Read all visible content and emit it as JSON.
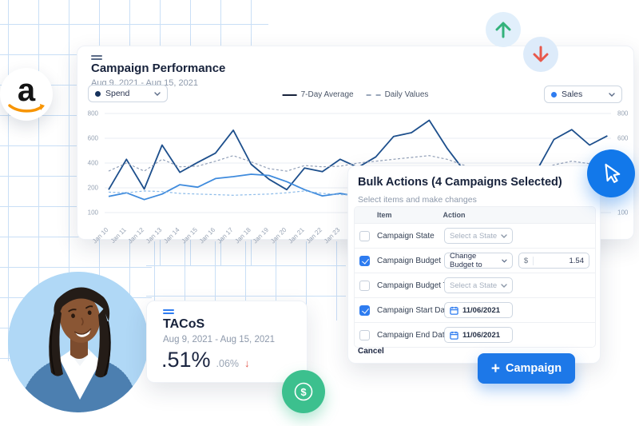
{
  "chart_card": {
    "title": "Campaign Performance",
    "date_range": "Aug 9, 2021 - Aug 15, 2021",
    "left_select": {
      "value": "Spend",
      "dot_color": "#16325c"
    },
    "right_select": {
      "value": "Sales",
      "dot_color": "#2e7cf0"
    },
    "legend": [
      {
        "label": "7-Day Average",
        "style": "solid"
      },
      {
        "label": "Daily Values",
        "style": "dashed"
      }
    ]
  },
  "chart_data": {
    "type": "line",
    "title": "Campaign Performance",
    "xlabel": "",
    "ylabel": "",
    "ylim": [
      100,
      800
    ],
    "grid": true,
    "legend_position": "top-center",
    "y_ticks": [
      800,
      600,
      400,
      200,
      100
    ],
    "x_labels_visible": [
      "Jan 10",
      "Jan 11",
      "Jan 12",
      "Jan 13",
      "Jan 14",
      "Jan 15",
      "Jan 16",
      "Jan 17",
      "Jan 18",
      "Jan 19",
      "Jan 20",
      "Jan 21",
      "Jan 22",
      "Jan 23"
    ],
    "series": [
      {
        "name": "Spend 7-Day Average",
        "style": "solid",
        "color": "#1d4f8c",
        "values": [
          185,
          430,
          190,
          545,
          325,
          405,
          480,
          665,
          390,
          270,
          185,
          360,
          330,
          430,
          365,
          450,
          615,
          645,
          745,
          520,
          330,
          290,
          310,
          355,
          330,
          590,
          670,
          545,
          620
        ]
      },
      {
        "name": "Spend Daily Values",
        "style": "dashed",
        "color": "#92a0b8",
        "values": [
          335,
          400,
          335,
          430,
          370,
          375,
          415,
          460,
          410,
          355,
          335,
          380,
          370,
          375,
          400,
          415,
          430,
          445,
          460,
          430,
          380,
          330,
          320,
          330,
          340,
          385,
          415,
          395,
          420
        ]
      },
      {
        "name": "Sales 7-Day Average",
        "style": "solid",
        "color": "#3f8bdd",
        "values": [
          130,
          160,
          105,
          150,
          225,
          205,
          275,
          290,
          310,
          300,
          250,
          185,
          135,
          155,
          130,
          140,
          150,
          160,
          170,
          165,
          150,
          140,
          145,
          150,
          155,
          160,
          170,
          165,
          170
        ]
      },
      {
        "name": "Sales Daily Values",
        "style": "dashed",
        "color": "#8cbbe9",
        "values": [
          165,
          160,
          175,
          170,
          155,
          150,
          145,
          140,
          145,
          150,
          160,
          175,
          155,
          145,
          140,
          145,
          150,
          155,
          150,
          145,
          150,
          155,
          150,
          145,
          150,
          155,
          160,
          155,
          150
        ]
      }
    ]
  },
  "bulk_panel": {
    "title": "Bulk Actions (4 Campaigns Selected)",
    "subtitle": "Select items and make changes",
    "columns": {
      "item": "Item",
      "action": "Action"
    },
    "rows": [
      {
        "label": "Campaign State",
        "checked": false,
        "control": {
          "type": "select",
          "value": "Select a State",
          "muted": true
        }
      },
      {
        "label": "Campaign Budget",
        "checked": true,
        "control": {
          "type": "select",
          "value": "Change Budget to",
          "muted": false
        },
        "extra": {
          "prefix": "$",
          "value": "1.54"
        }
      },
      {
        "label": "Campaign Budget Type",
        "checked": false,
        "control": {
          "type": "select",
          "value": "Select a State",
          "muted": true
        }
      },
      {
        "label": "Campaign Start Date",
        "checked": true,
        "control": {
          "type": "date",
          "value": "11/06/2021"
        }
      },
      {
        "label": "Campaign End Date",
        "checked": false,
        "control": {
          "type": "date",
          "value": "11/06/2021"
        }
      }
    ],
    "cancel_label": "Cancel"
  },
  "campaign_button": {
    "plus": "+",
    "label": "Campaign"
  },
  "tacos_card": {
    "title": "TACoS",
    "date_range": "Aug 9, 2021 - Aug 15, 2021",
    "value": ".51%",
    "delta": ".06%",
    "delta_direction": "down",
    "delta_arrow": "↓"
  },
  "amazon_logo": {
    "letter": "a"
  },
  "colors": {
    "primary_blue": "#1d78e8",
    "checkbox_blue": "#2e7cf0",
    "green": "#3cc08e",
    "up_arrow_green": "#33b27b",
    "down_arrow_red": "#e8584b",
    "delta_red": "#e2574c",
    "grid_blue": "#c9dff6"
  }
}
